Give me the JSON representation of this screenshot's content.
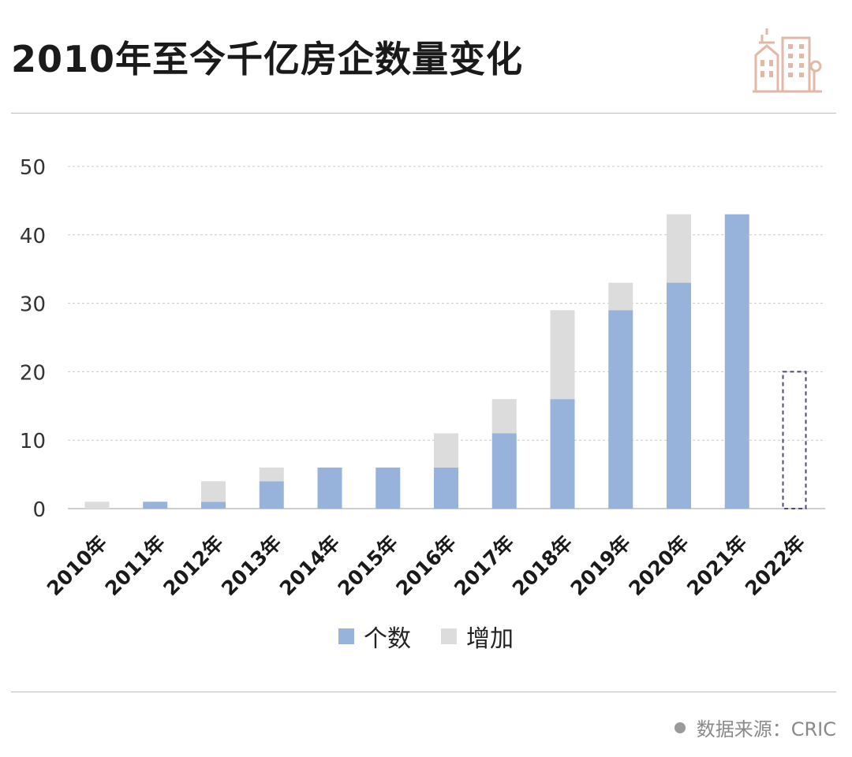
{
  "title": "2010年至今千亿房企数量变化",
  "colors": {
    "count": "#97B2DB",
    "increase": "#DCDCDC",
    "forecast_outline": "#4a4a7a",
    "grid": "#cccccc",
    "icon": "#e2b8a8"
  },
  "legend": {
    "count_label": "个数",
    "increase_label": "增加"
  },
  "source": {
    "text": "数据来源：CRIC"
  },
  "chart_data": {
    "type": "bar",
    "stacked": true,
    "title": "2010年至今千亿房企数量变化",
    "categories": [
      "2010年",
      "2011年",
      "2012年",
      "2013年",
      "2014年",
      "2015年",
      "2016年",
      "2017年",
      "2018年",
      "2019年",
      "2020年",
      "2021年",
      "2022年"
    ],
    "series": [
      {
        "name": "个数",
        "values": [
          0,
          1,
          1,
          4,
          6,
          6,
          6,
          11,
          16,
          29,
          33,
          43,
          0
        ]
      },
      {
        "name": "增加",
        "values": [
          1,
          0,
          3,
          2,
          0,
          0,
          5,
          5,
          13,
          4,
          10,
          0,
          0
        ]
      }
    ],
    "forecast": {
      "category": "2022年",
      "value": 20,
      "style": "dashed outline"
    },
    "yticks": [
      0,
      10,
      20,
      30,
      40,
      50
    ],
    "ylim": [
      0,
      50
    ],
    "grid": true,
    "legend_position": "bottom"
  }
}
